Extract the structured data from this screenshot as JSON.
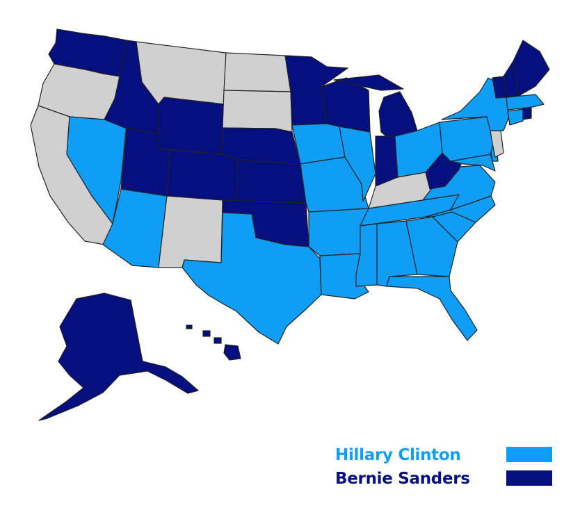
{
  "colors": {
    "clinton": "#0f9df6",
    "sanders": "#050f7e",
    "undecided": "#d0d0d0",
    "border": "#222222"
  },
  "legend": [
    {
      "label": "Hillary Clinton",
      "party": "clinton"
    },
    {
      "label": "Bernie Sanders",
      "party": "sanders"
    }
  ],
  "states": {
    "WA": "sanders",
    "OR": "undecided",
    "CA": "undecided",
    "NV": "clinton",
    "ID": "sanders",
    "MT": "undecided",
    "WY": "sanders",
    "UT": "sanders",
    "AZ": "clinton",
    "CO": "sanders",
    "NM": "undecided",
    "ND": "undecided",
    "SD": "undecided",
    "NE": "sanders",
    "KS": "sanders",
    "OK": "sanders",
    "TX": "clinton",
    "MN": "sanders",
    "IA": "clinton",
    "MO": "clinton",
    "AR": "clinton",
    "LA": "clinton",
    "WI": "sanders",
    "IL": "clinton",
    "MI": "sanders",
    "IN": "sanders",
    "OH": "clinton",
    "KY": "undecided",
    "TN": "clinton",
    "MS": "clinton",
    "AL": "clinton",
    "GA": "clinton",
    "FL": "clinton",
    "SC": "clinton",
    "NC": "clinton",
    "VA": "clinton",
    "WV": "sanders",
    "MD": "clinton",
    "DE": "clinton",
    "PA": "clinton",
    "NJ": "undecided",
    "NY": "clinton",
    "CT": "clinton",
    "RI": "sanders",
    "MA": "clinton",
    "VT": "sanders",
    "NH": "sanders",
    "ME": "sanders",
    "AK": "sanders",
    "HI": "sanders"
  }
}
